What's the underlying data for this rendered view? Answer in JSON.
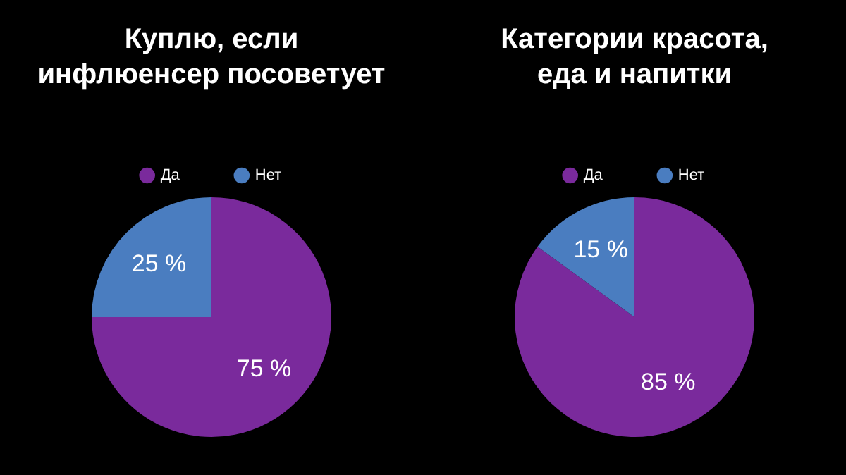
{
  "chart_data": [
    {
      "type": "pie",
      "title": "Куплю, если\nинфлюенсер посоветует",
      "categories": [
        "Да",
        "Нет"
      ],
      "values": [
        75,
        25
      ],
      "colors": [
        "#7a2a9c",
        "#4a7dc0"
      ],
      "value_labels": [
        "75 %",
        "25 %"
      ],
      "legend": "top"
    },
    {
      "type": "pie",
      "title": "Категории красота,\nеда и напитки",
      "categories": [
        "Да",
        "Нет"
      ],
      "values": [
        85,
        15
      ],
      "colors": [
        "#7a2a9c",
        "#4a7dc0"
      ],
      "value_labels": [
        "85 %",
        "15 %"
      ],
      "legend": "top"
    }
  ]
}
